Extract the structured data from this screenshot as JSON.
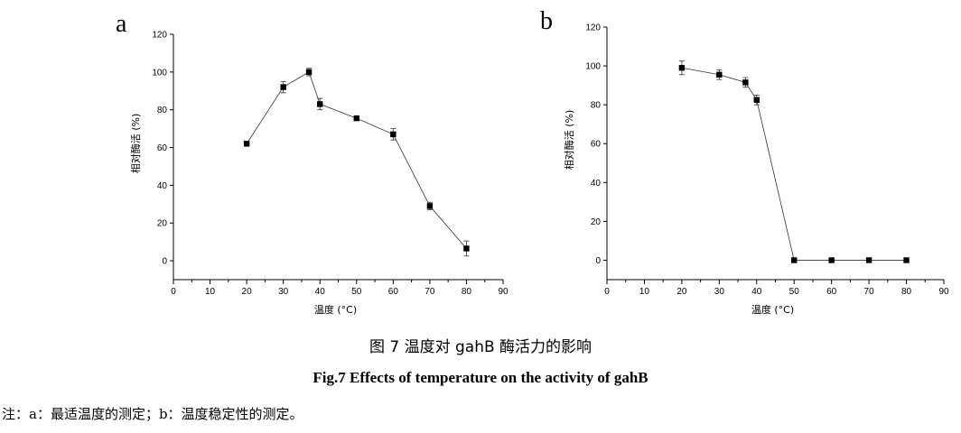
{
  "figure": {
    "caption_cn": "图 7  温度对 gahB 酶活力的影响",
    "caption_en": "Fig.7 Effects of temperature on the activity of gahB",
    "note": "注：a：最适温度的测定；b：温度稳定性的测定。"
  },
  "chart_data": [
    {
      "type": "line",
      "panel_label": "a",
      "title": "",
      "xlabel": "温度 (°C)",
      "ylabel": "相对酶活 (%)",
      "xlim": [
        0,
        90
      ],
      "ylim": [
        -10,
        120
      ],
      "xticks": [
        0,
        10,
        20,
        30,
        40,
        50,
        60,
        70,
        80,
        90
      ],
      "yticks": [
        0,
        20,
        40,
        60,
        80,
        100,
        120
      ],
      "marker": "square",
      "grid": false,
      "series": [
        {
          "name": "relative activity",
          "x": [
            20,
            30,
            37,
            40,
            50,
            60,
            70,
            80
          ],
          "y": [
            62,
            92,
            100,
            83,
            75.5,
            67,
            29,
            6.5
          ],
          "err": [
            1.2,
            3,
            2,
            3,
            1,
            3,
            2,
            4
          ]
        }
      ]
    },
    {
      "type": "line",
      "panel_label": "b",
      "title": "",
      "xlabel": "温度 (°C)",
      "ylabel": "相对酶活 (%)",
      "xlim": [
        0,
        90
      ],
      "ylim": [
        -10,
        120
      ],
      "xticks": [
        0,
        10,
        20,
        30,
        40,
        50,
        60,
        70,
        80,
        90
      ],
      "yticks": [
        0,
        20,
        40,
        60,
        80,
        100,
        120
      ],
      "marker": "square",
      "grid": false,
      "series": [
        {
          "name": "relative activity",
          "x": [
            20,
            30,
            37,
            40,
            50,
            60,
            70,
            80
          ],
          "y": [
            99,
            95.5,
            91.5,
            82.5,
            0,
            0,
            0,
            0
          ],
          "err": [
            3.5,
            2.5,
            2.5,
            2.5,
            0,
            0,
            0,
            0
          ]
        }
      ]
    }
  ]
}
